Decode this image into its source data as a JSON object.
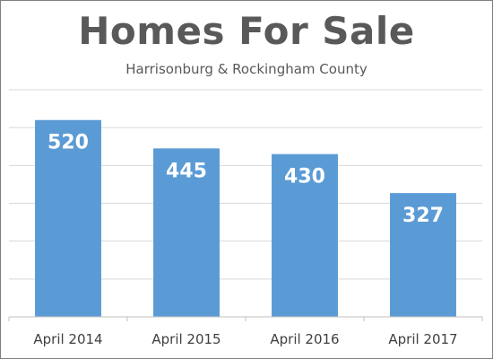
{
  "chart_data": {
    "type": "bar",
    "title": "Homes For Sale",
    "subtitle": "Harrisonburg & Rockingham County",
    "categories": [
      "April 2014",
      "April 2015",
      "April 2016",
      "April 2017"
    ],
    "values": [
      520,
      445,
      430,
      327
    ],
    "data_labels": [
      "520",
      "445",
      "430",
      "327"
    ],
    "xlabel": "",
    "ylabel": "",
    "ylim": [
      0,
      600
    ],
    "grid": true,
    "legend": "none",
    "colors": {
      "bar": "#5b9bd5",
      "title": "#595959",
      "gridline": "#d9d9d9",
      "axis": "#bfbfbf"
    }
  }
}
